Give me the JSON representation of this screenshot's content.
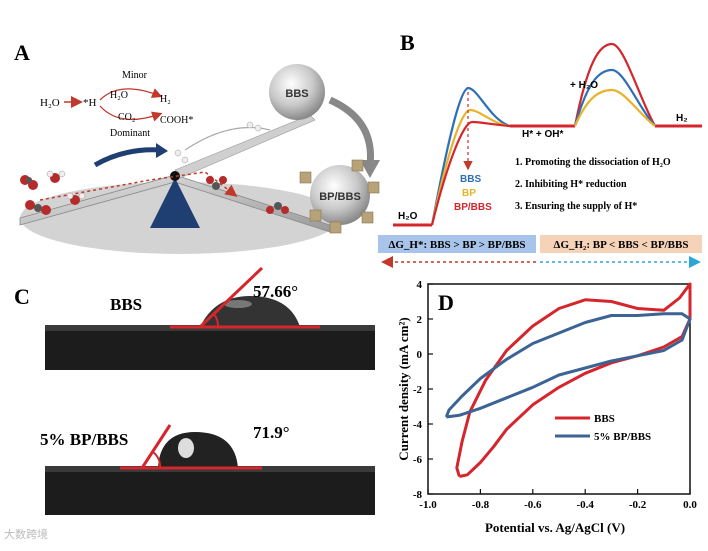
{
  "panels": {
    "A": {
      "label": "A",
      "minor": "Minor",
      "dominant": "Dominant",
      "h2o": "H₂O",
      "h2o_left": "H₂O",
      "h_star": "*H",
      "h2": "H₂",
      "co2": "CO₂",
      "cooh": "COOH*",
      "bbs_sphere": "BBS",
      "bpbbs_sphere": "BP/BBS"
    },
    "B": {
      "label": "B",
      "state_h2o": "H₂O",
      "state_hoh": "H* + OH*",
      "state_plus_h2o": "+ H₂O",
      "state_h2": "H₂",
      "legend": [
        {
          "name": "BBS",
          "color": "#2e6fb5"
        },
        {
          "name": "BP",
          "color": "#e8b32a"
        },
        {
          "name": "BP/BBS",
          "color": "#d4262c"
        }
      ],
      "notes": [
        "1.  Promoting the dissociation of H₂O",
        "2.  Inhibiting H* reduction",
        "3.  Ensuring the supply of H*"
      ],
      "box_left": "ΔG_H*: BBS > BP > BP/BBS",
      "box_right": "ΔG_H₂: BP < BBS < BP/BBS",
      "box_left_color": "#a9c4ea",
      "box_right_color": "#f5d3b8"
    },
    "C": {
      "label": "C",
      "bbs_label": "BBS",
      "bbs_angle": "57.66°",
      "bpbbs_label": "5% BP/BBS",
      "bpbbs_angle": "71.9°"
    },
    "D": {
      "label": "D",
      "chart_data": {
        "type": "line",
        "xlabel": "Potential vs. Ag/AgCl (V)",
        "ylabel": "Current density (mA cm²)",
        "xlim": [
          -1.0,
          0.0
        ],
        "ylim": [
          -8,
          4
        ],
        "xticks": [
          "-1.0",
          "-0.8",
          "-0.6",
          "-0.4",
          "-0.2",
          "0.0"
        ],
        "yticks": [
          "4",
          "2",
          "0",
          "-2",
          "-4",
          "-6",
          "-8"
        ],
        "legend_position": "lower-right",
        "series": [
          {
            "name": "BBS",
            "color": "#d4262c",
            "x": [
              -0.88,
              -0.85,
              -0.8,
              -0.75,
              -0.7,
              -0.6,
              -0.5,
              -0.4,
              -0.3,
              -0.2,
              -0.1,
              -0.03,
              0.0,
              0.0,
              -0.04,
              -0.1,
              -0.2,
              -0.3,
              -0.4,
              -0.5,
              -0.6,
              -0.7,
              -0.78,
              -0.84,
              -0.87,
              -0.89,
              -0.88
            ],
            "y": [
              -7.0,
              -6.9,
              -6.2,
              -5.3,
              -4.3,
              -2.9,
              -1.9,
              -1.1,
              -0.5,
              -0.1,
              0.4,
              1.0,
              2.0,
              4.0,
              3.2,
              2.5,
              2.6,
              3.0,
              3.1,
              2.6,
              1.6,
              0.2,
              -1.5,
              -3.3,
              -5.0,
              -6.5,
              -7.0
            ]
          },
          {
            "name": "5% BP/BBS",
            "color": "#3b6494",
            "x": [
              -0.93,
              -0.88,
              -0.8,
              -0.7,
              -0.6,
              -0.5,
              -0.4,
              -0.3,
              -0.2,
              -0.1,
              -0.03,
              0.0,
              -0.03,
              -0.1,
              -0.2,
              -0.3,
              -0.4,
              -0.5,
              -0.6,
              -0.7,
              -0.8,
              -0.87,
              -0.92,
              -0.93
            ],
            "y": [
              -3.6,
              -3.5,
              -3.1,
              -2.5,
              -1.9,
              -1.2,
              -0.8,
              -0.4,
              -0.1,
              0.2,
              0.8,
              2.0,
              2.3,
              2.3,
              2.2,
              2.2,
              1.8,
              1.2,
              0.6,
              -0.3,
              -1.4,
              -2.4,
              -3.2,
              -3.6
            ]
          }
        ]
      }
    }
  },
  "watermark": "大数跨境"
}
